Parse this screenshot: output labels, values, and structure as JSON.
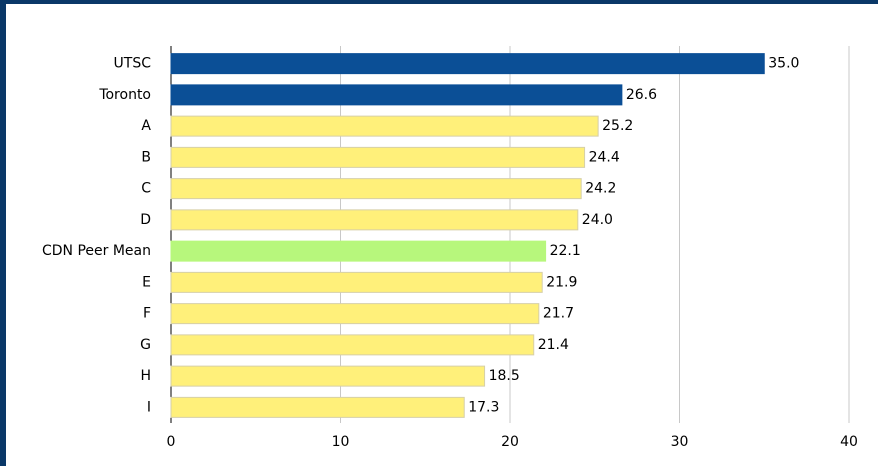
{
  "chart_data": {
    "type": "bar",
    "orientation": "horizontal",
    "categories": [
      "UTSC",
      "Toronto",
      "A",
      "B",
      "C",
      "D",
      "CDN Peer Mean",
      "E",
      "F",
      "G",
      "H",
      "I"
    ],
    "values": [
      35.0,
      26.6,
      25.2,
      24.4,
      24.2,
      24.0,
      22.1,
      21.9,
      21.7,
      21.4,
      18.5,
      17.3
    ],
    "value_labels": [
      "35.0",
      "26.6",
      "25.2",
      "24.4",
      "24.2",
      "24.0",
      "22.1",
      "21.9",
      "21.7",
      "21.4",
      "18.5",
      "17.3"
    ],
    "colors": [
      "#0b4f96",
      "#0b4f96",
      "#fff07a",
      "#fff07a",
      "#fff07a",
      "#fff07a",
      "#b7f77c",
      "#fff07a",
      "#fff07a",
      "#fff07a",
      "#fff07a",
      "#fff07a"
    ],
    "xlim": [
      0,
      40
    ],
    "xticks": [
      0,
      10,
      20,
      30,
      40
    ],
    "grid": true
  }
}
